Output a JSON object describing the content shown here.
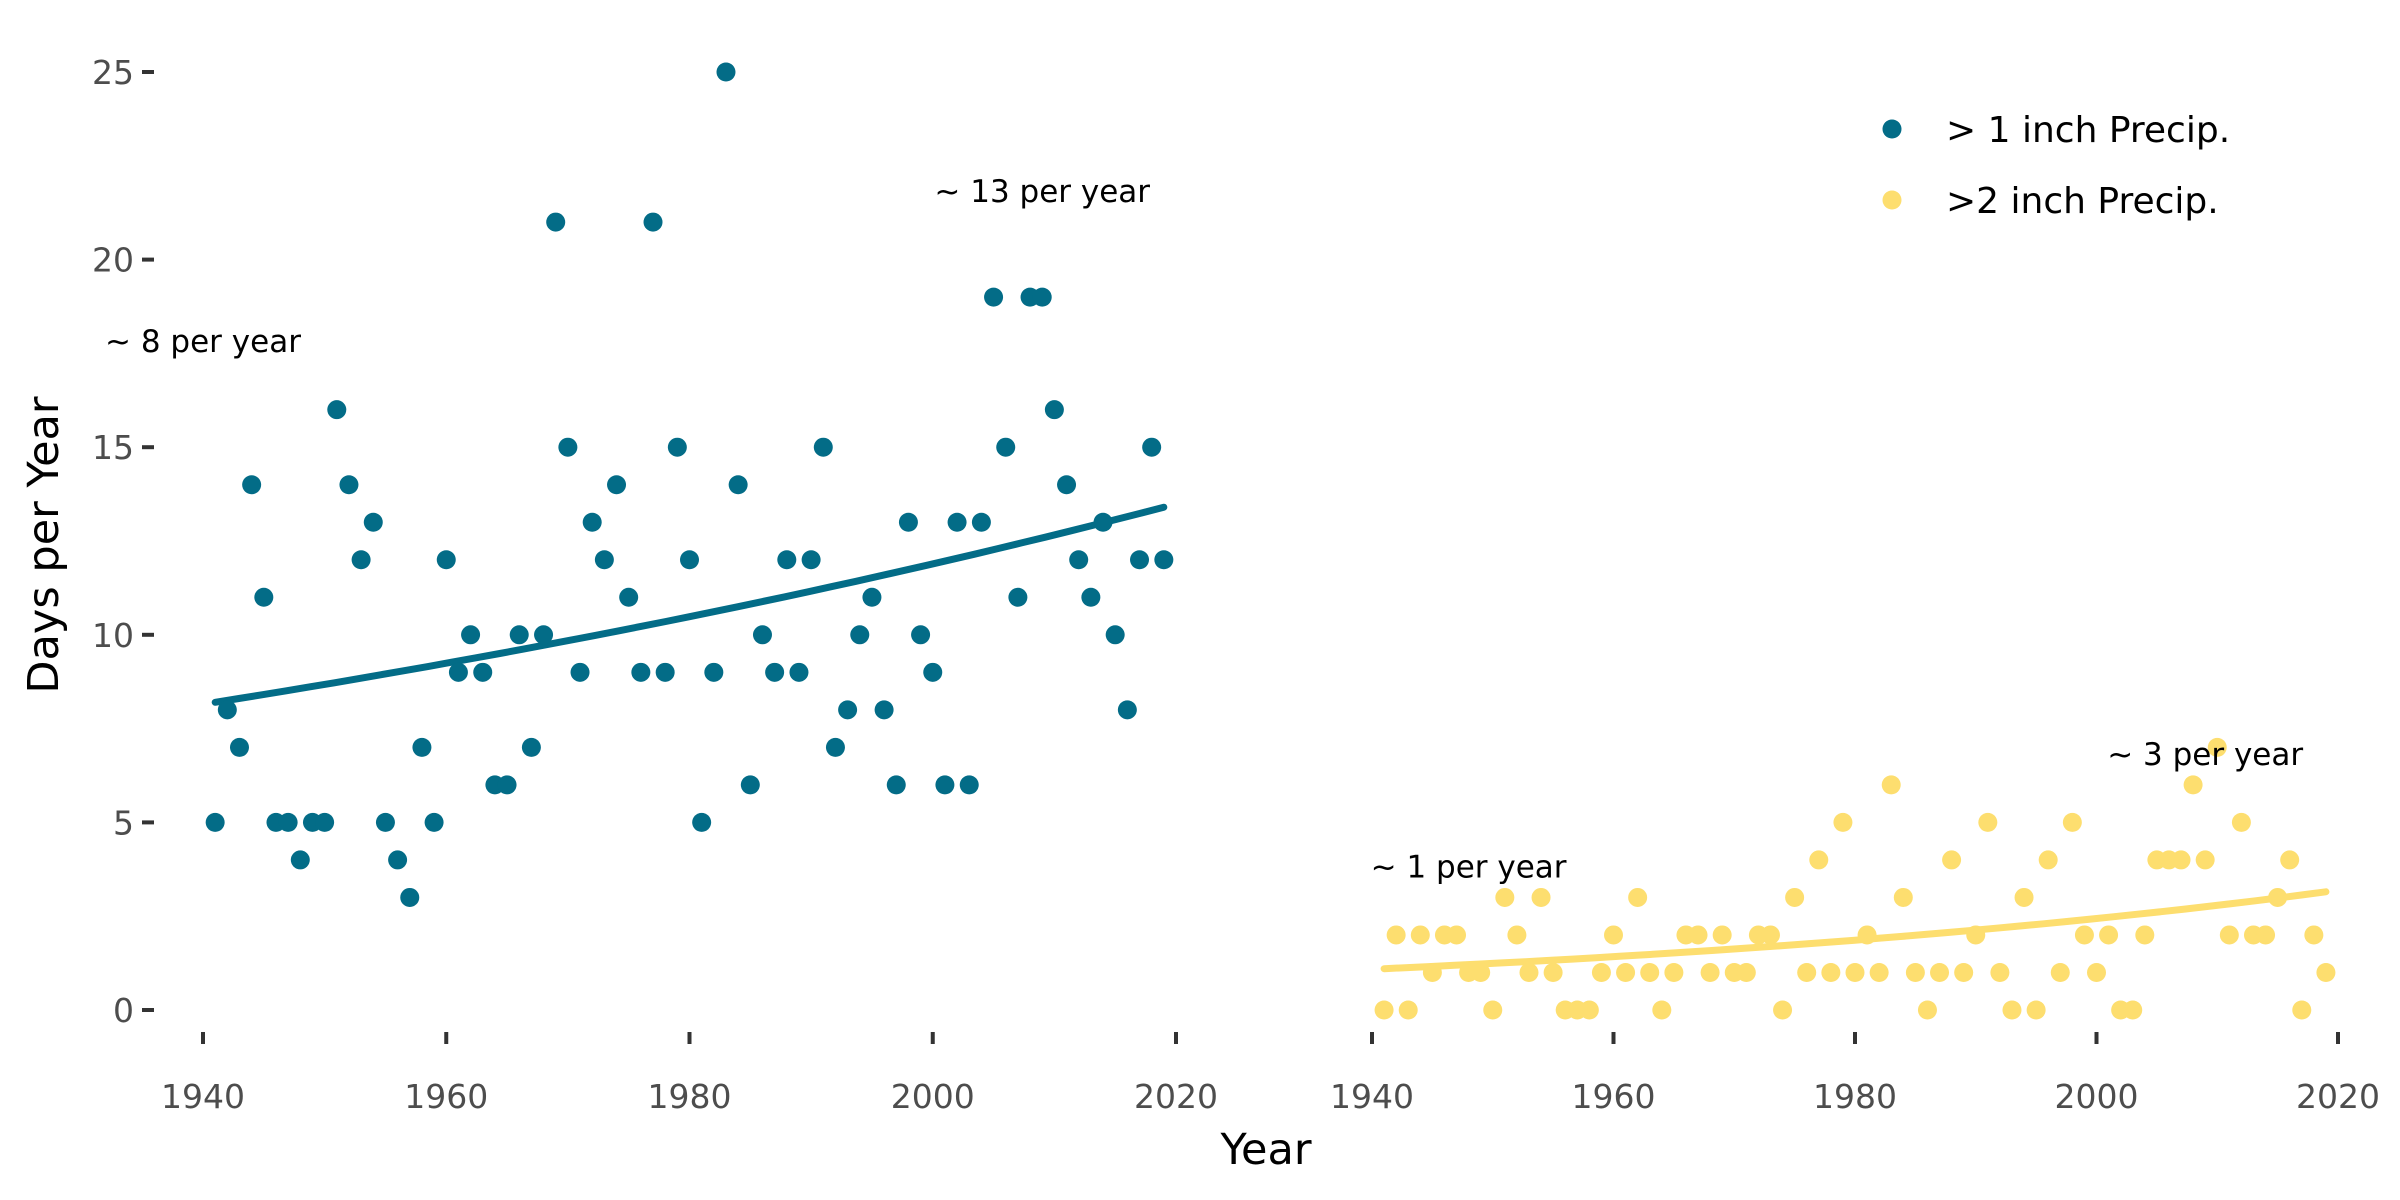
{
  "chart_data": {
    "type": "scatter",
    "ylabel": "Days per Year",
    "xlabel": "Year",
    "ylim": [
      0,
      25
    ],
    "yticks": [
      0,
      5,
      10,
      15,
      20,
      25
    ],
    "xticks": [
      1940,
      1960,
      1980,
      2000,
      2020
    ],
    "grid": false,
    "legend_position": "top-right",
    "panels": [
      {
        "series": ">1",
        "xlim": [
          1940,
          2020
        ],
        "annotations": [
          {
            "text": "~ 8 per year",
            "x": 1940,
            "y": 17.8
          },
          {
            "text": "~ 13 per year",
            "x": 2009,
            "y": 21.8
          }
        ]
      },
      {
        "series": ">2",
        "xlim": [
          1940,
          2020
        ],
        "annotations": [
          {
            "text": "~ 1 per year",
            "x": 1948,
            "y": 3.8
          },
          {
            "text": "~ 3 per year",
            "x": 2009,
            "y": 6.8
          }
        ]
      }
    ],
    "series": [
      {
        "key": ">1",
        "name": "> 1 inch Precip.",
        "color": "#036C87",
        "x": [
          1941,
          1942,
          1943,
          1944,
          1945,
          1946,
          1947,
          1948,
          1949,
          1950,
          1951,
          1952,
          1953,
          1954,
          1955,
          1956,
          1957,
          1958,
          1959,
          1960,
          1961,
          1962,
          1963,
          1964,
          1965,
          1966,
          1967,
          1968,
          1969,
          1970,
          1971,
          1972,
          1973,
          1974,
          1975,
          1976,
          1977,
          1978,
          1979,
          1980,
          1981,
          1982,
          1983,
          1984,
          1985,
          1986,
          1987,
          1988,
          1989,
          1990,
          1991,
          1992,
          1993,
          1994,
          1995,
          1996,
          1997,
          1998,
          1999,
          2000,
          2001,
          2002,
          2003,
          2004,
          2005,
          2006,
          2007,
          2008,
          2009,
          2010,
          2011,
          2012,
          2013,
          2014,
          2015,
          2016,
          2017,
          2018,
          2019
        ],
        "values": [
          5,
          8,
          7,
          14,
          11,
          5,
          5,
          4,
          5,
          5,
          16,
          14,
          12,
          13,
          5,
          4,
          3,
          7,
          5,
          12,
          9,
          10,
          9,
          6,
          6,
          10,
          7,
          10,
          21,
          15,
          9,
          13,
          12,
          14,
          11,
          9,
          21,
          9,
          15,
          12,
          5,
          9,
          25,
          14,
          6,
          10,
          9,
          12,
          9,
          12,
          15,
          7,
          8,
          10,
          11,
          8,
          6,
          13,
          10,
          9,
          6,
          13,
          6,
          13,
          19,
          15,
          11,
          19,
          19,
          16,
          14,
          12,
          11,
          13,
          10,
          8,
          12,
          15,
          12
        ],
        "trend": {
          "x": [
            1941,
            2019
          ],
          "y_start": 8.2,
          "y_end": 13.4
        }
      },
      {
        "key": ">2",
        "name": ">2 inch Precip.",
        "color": "#FDDE6F",
        "x": [
          1941,
          1942,
          1943,
          1944,
          1945,
          1946,
          1947,
          1948,
          1949,
          1950,
          1951,
          1952,
          1953,
          1954,
          1955,
          1956,
          1957,
          1958,
          1959,
          1960,
          1961,
          1962,
          1963,
          1964,
          1965,
          1966,
          1967,
          1968,
          1969,
          1970,
          1971,
          1972,
          1973,
          1974,
          1975,
          1976,
          1977,
          1978,
          1979,
          1980,
          1981,
          1982,
          1983,
          1984,
          1985,
          1986,
          1987,
          1988,
          1989,
          1990,
          1991,
          1992,
          1993,
          1994,
          1995,
          1996,
          1997,
          1998,
          1999,
          2000,
          2001,
          2002,
          2003,
          2004,
          2005,
          2006,
          2007,
          2008,
          2009,
          2010,
          2011,
          2012,
          2013,
          2014,
          2015,
          2016,
          2017,
          2018,
          2019
        ],
        "values": [
          0,
          2,
          0,
          2,
          1,
          2,
          2,
          1,
          1,
          0,
          3,
          2,
          1,
          3,
          1,
          0,
          0,
          0,
          1,
          2,
          1,
          3,
          1,
          0,
          1,
          2,
          2,
          1,
          2,
          1,
          1,
          2,
          2,
          0,
          3,
          1,
          4,
          1,
          5,
          1,
          2,
          1,
          6,
          3,
          1,
          0,
          1,
          4,
          1,
          2,
          5,
          1,
          0,
          3,
          0,
          4,
          1,
          5,
          2,
          1,
          2,
          0,
          0,
          2,
          4,
          4,
          4,
          6,
          4,
          7,
          2,
          5,
          2,
          2,
          3,
          4,
          0,
          2,
          1
        ],
        "trend": {
          "x": [
            1941,
            2019
          ],
          "y_start": 1.1,
          "y_end": 3.15
        }
      }
    ]
  }
}
